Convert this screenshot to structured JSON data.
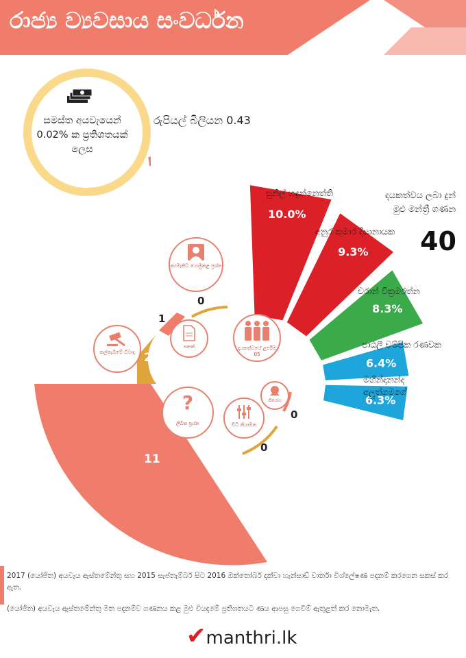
{
  "header": {
    "title": "රාජ්‍ය ව්‍යවසාය සංවර්ධන"
  },
  "budget": {
    "share_text": "සමස්ත අයවැයෙන් 0.02% ක ප්‍රතිශතයක් ලෙස",
    "amount": "රුපියල් බිලියන 0.43",
    "share_fraction": 0.0002,
    "icon": "money-stack-icon"
  },
  "members": {
    "label": "දයකත්වය ලබා දුන් මුළු මන්ත්‍රී ගණන",
    "count": "40",
    "top5_label": "දායකත්වයේ උපරිම 05",
    "icon": "people-group-icon"
  },
  "activities": [
    {
      "key": "questions",
      "label": "අගමැතිට යොමුකළ ප්‍රශ්න",
      "value": "0",
      "icon": "person-icon"
    },
    {
      "key": "acts",
      "label": "පනත්",
      "value": "1",
      "icon": "document-icon"
    },
    {
      "key": "debates",
      "label": "කල්තැබීමේ විවාද",
      "value": "2",
      "icon": "gavel-icon"
    },
    {
      "key": "written",
      "label": "ලිඛිත ප්‍රශ්න",
      "value": "11",
      "icon": "question-icon"
    },
    {
      "key": "rules",
      "label": "විධි නියාමන",
      "value": "0",
      "icon": "sliders-icon"
    },
    {
      "key": "motions",
      "label": "නියෝග",
      "value": "0",
      "icon": "speech-icon"
    }
  ],
  "colors": {
    "banner": "#f07d6b",
    "red": "#dc2027",
    "green": "#3aaa4a",
    "blue": "#1ea6dc",
    "salmon": "#f07d6b",
    "gold": "#e0a53a",
    "ring": "#fbd98a"
  },
  "chart_data": {
    "type": "bar",
    "categories": [
      "සුනිල් හඳුන්නෙත්ති",
      "අනුර කුමාර දිසානායක",
      "චරාන් වික්‍රමරත්න",
      "පාඨලී චම්පික රණවක",
      "මහින්දානන්ද අලුත්ගමගේ"
    ],
    "values": [
      10.0,
      9.3,
      8.3,
      6.4,
      6.3
    ],
    "value_labels": [
      "10.0%",
      "9.3%",
      "8.3%",
      "6.4%",
      "6.3%"
    ],
    "colors": [
      "#dc2027",
      "#dc2027",
      "#3aaa4a",
      "#1ea6dc",
      "#1ea6dc"
    ]
  },
  "footer": {
    "note1": "2017 (යෝජිත) අයවැය ඇස්තමේන්තු සහ 2015 සැප්තැම්බර් සිට 2016 ඔක්තෝබර් දක්වා හැන්සාඩ් වාර්තා විශ්ලේෂණ පදනම් කරගෙන සකස් කර ඇත.",
    "note2": "(යෝජිත) අයවැය ඇස්තමේන්තු මත පදනම්ව ගණනය කළ මුළු වියදමේ ප්‍රතිශතයට ණය ආපසු ගෙවීම් ඇතුළත් කර නොමැත.",
    "logo_text": "manthri.lk"
  }
}
